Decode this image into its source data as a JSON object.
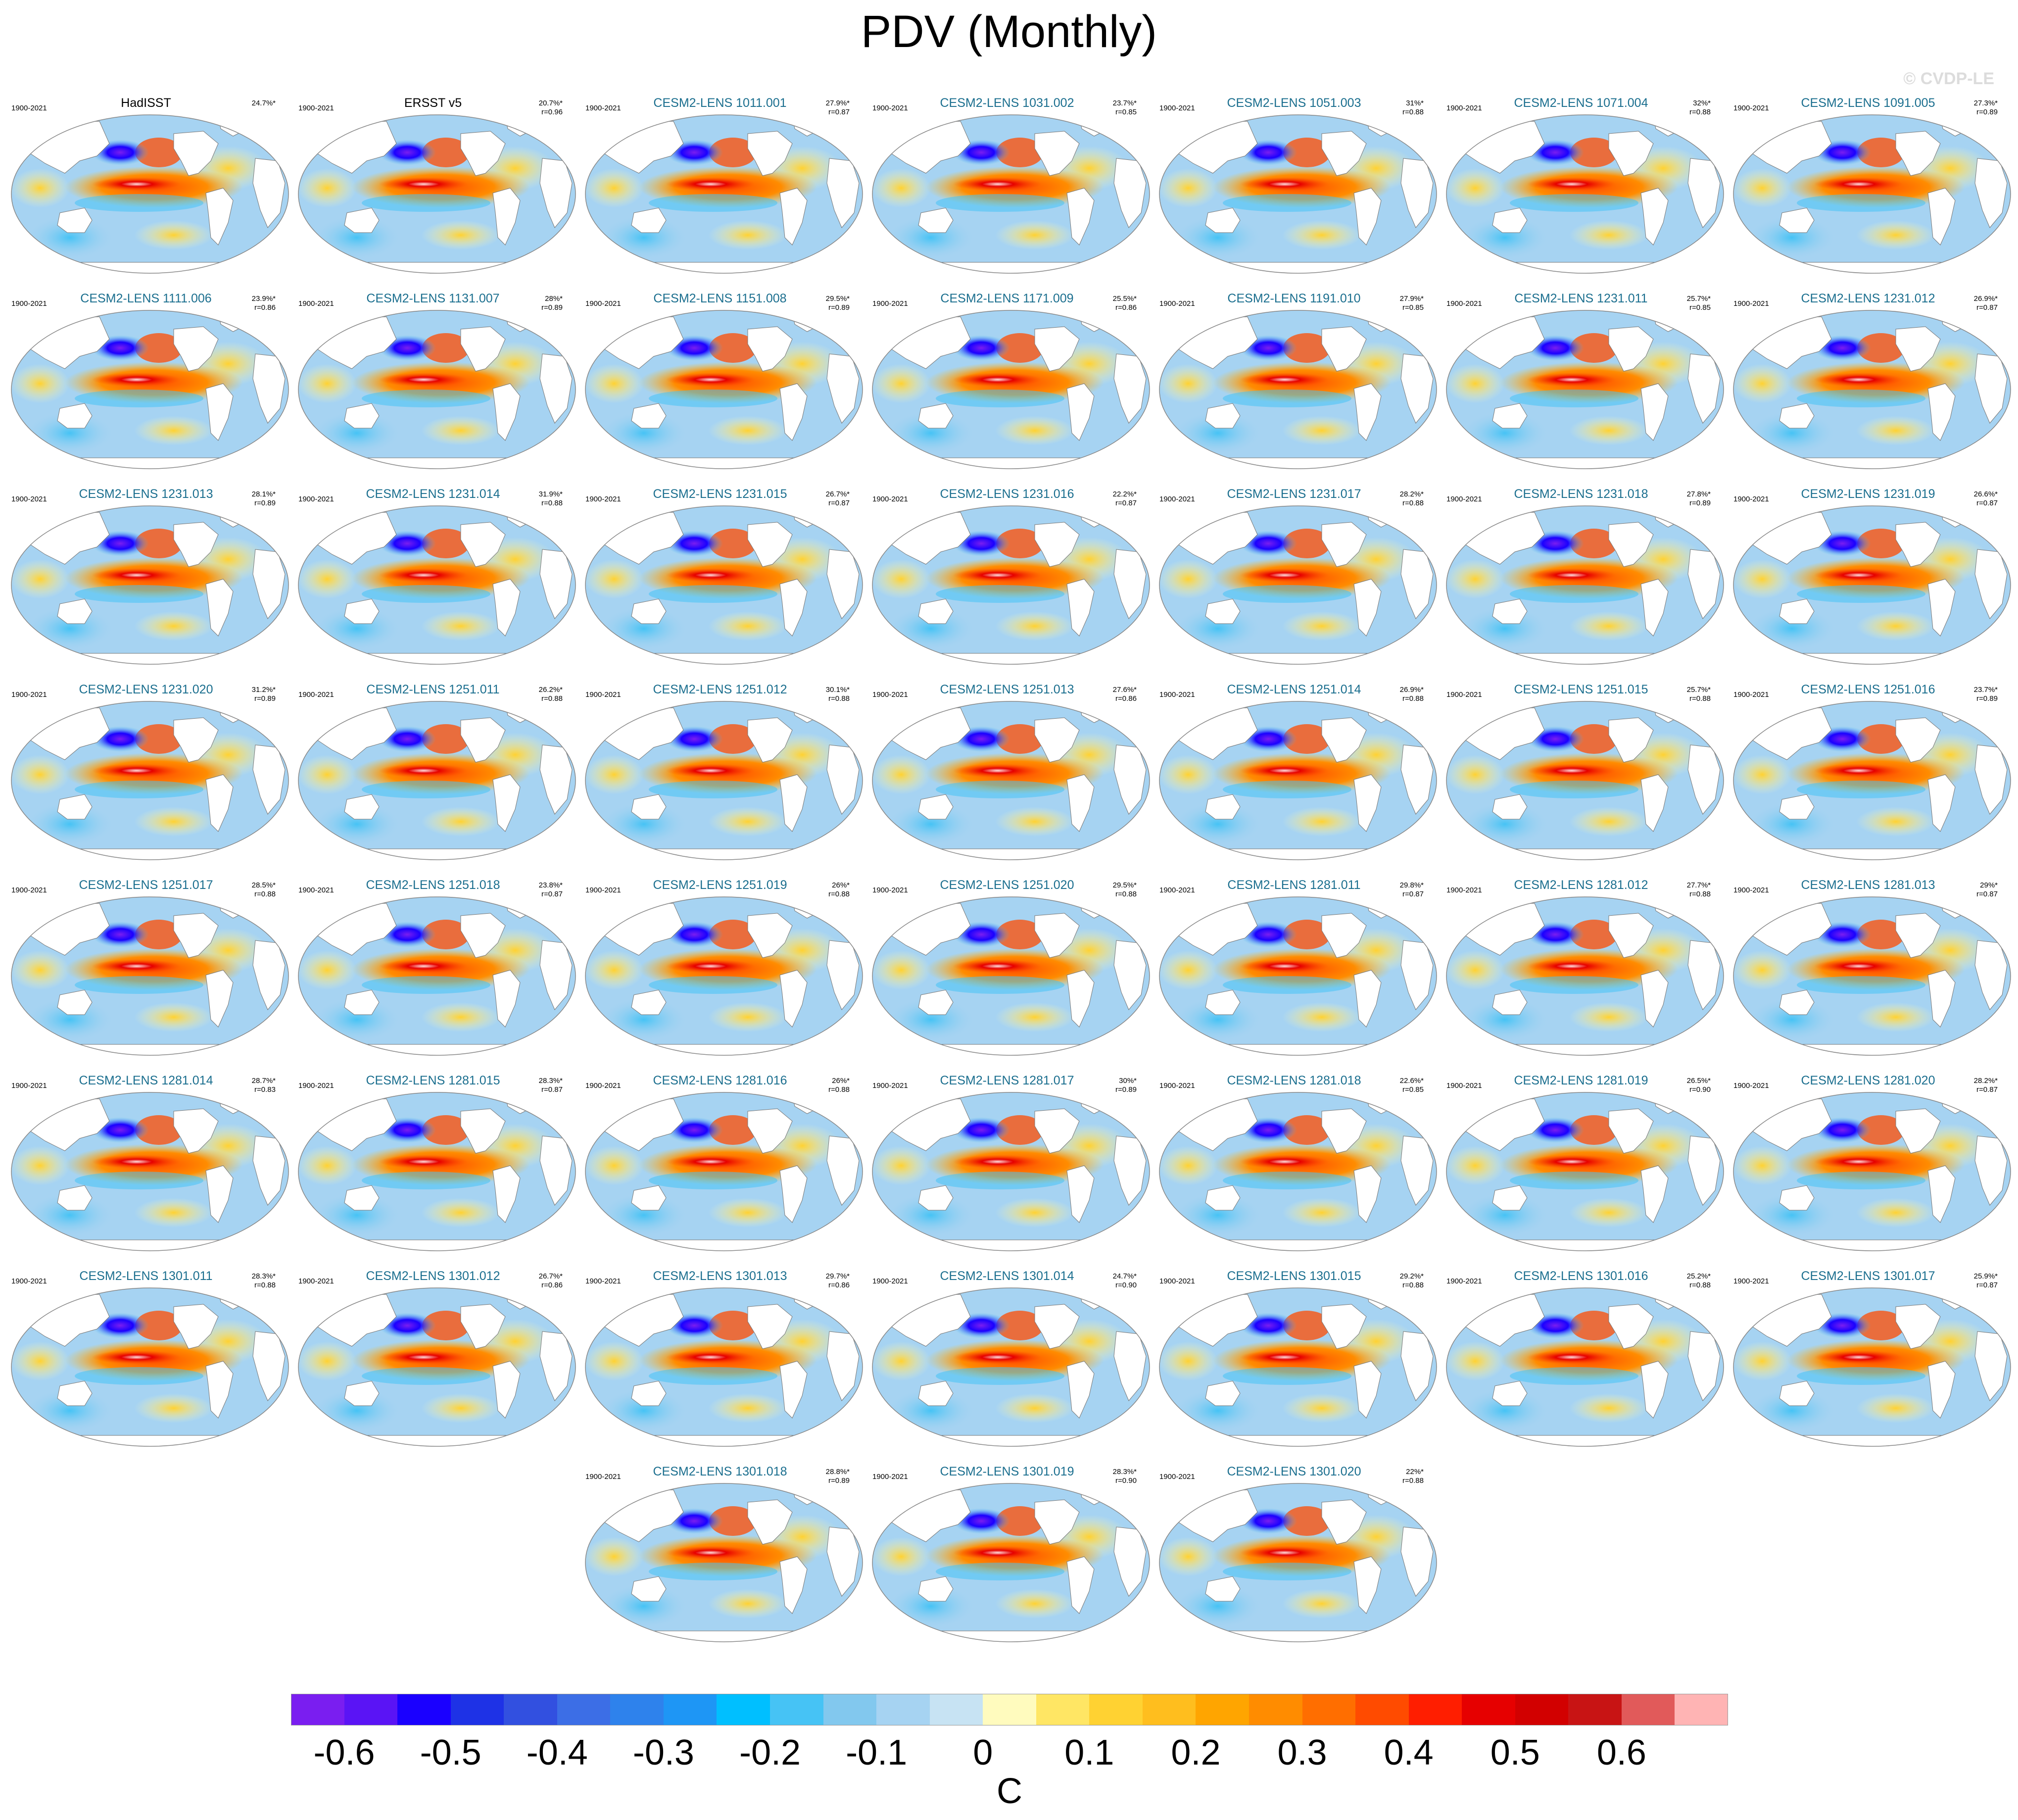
{
  "title": "PDV (Monthly)",
  "watermark": "© CVDP-LE",
  "colors": {
    "ocean_base": "#a6d1ec",
    "land": "#ffffff",
    "frame": "#888888",
    "cb_border": "#999999"
  },
  "panels": [
    {
      "name": "HadISST",
      "period": "1900-2021",
      "pct": "24.7%*",
      "r": "",
      "obs": true
    },
    {
      "name": "ERSST v5",
      "period": "1900-2021",
      "pct": "20.7%*",
      "r": "r=0.96",
      "obs": true
    },
    {
      "name": "CESM2-LENS 1011.001",
      "period": "1900-2021",
      "pct": "27.9%*",
      "r": "r=0.87"
    },
    {
      "name": "CESM2-LENS 1031.002",
      "period": "1900-2021",
      "pct": "23.7%*",
      "r": "r=0.85"
    },
    {
      "name": "CESM2-LENS 1051.003",
      "period": "1900-2021",
      "pct": "31%*",
      "r": "r=0.88"
    },
    {
      "name": "CESM2-LENS 1071.004",
      "period": "1900-2021",
      "pct": "32%*",
      "r": "r=0.88"
    },
    {
      "name": "CESM2-LENS 1091.005",
      "period": "1900-2021",
      "pct": "27.3%*",
      "r": "r=0.89"
    },
    {
      "name": "CESM2-LENS 1111.006",
      "period": "1900-2021",
      "pct": "23.9%*",
      "r": "r=0.86"
    },
    {
      "name": "CESM2-LENS 1131.007",
      "period": "1900-2021",
      "pct": "28%*",
      "r": "r=0.89"
    },
    {
      "name": "CESM2-LENS 1151.008",
      "period": "1900-2021",
      "pct": "29.5%*",
      "r": "r=0.89"
    },
    {
      "name": "CESM2-LENS 1171.009",
      "period": "1900-2021",
      "pct": "25.5%*",
      "r": "r=0.86"
    },
    {
      "name": "CESM2-LENS 1191.010",
      "period": "1900-2021",
      "pct": "27.9%*",
      "r": "r=0.85"
    },
    {
      "name": "CESM2-LENS 1231.011",
      "period": "1900-2021",
      "pct": "25.7%*",
      "r": "r=0.85"
    },
    {
      "name": "CESM2-LENS 1231.012",
      "period": "1900-2021",
      "pct": "26.9%*",
      "r": "r=0.87"
    },
    {
      "name": "CESM2-LENS 1231.013",
      "period": "1900-2021",
      "pct": "28.1%*",
      "r": "r=0.89"
    },
    {
      "name": "CESM2-LENS 1231.014",
      "period": "1900-2021",
      "pct": "31.9%*",
      "r": "r=0.88"
    },
    {
      "name": "CESM2-LENS 1231.015",
      "period": "1900-2021",
      "pct": "26.7%*",
      "r": "r=0.87"
    },
    {
      "name": "CESM2-LENS 1231.016",
      "period": "1900-2021",
      "pct": "22.2%*",
      "r": "r=0.87"
    },
    {
      "name": "CESM2-LENS 1231.017",
      "period": "1900-2021",
      "pct": "28.2%*",
      "r": "r=0.88"
    },
    {
      "name": "CESM2-LENS 1231.018",
      "period": "1900-2021",
      "pct": "27.8%*",
      "r": "r=0.89"
    },
    {
      "name": "CESM2-LENS 1231.019",
      "period": "1900-2021",
      "pct": "26.6%*",
      "r": "r=0.87"
    },
    {
      "name": "CESM2-LENS 1231.020",
      "period": "1900-2021",
      "pct": "31.2%*",
      "r": "r=0.89"
    },
    {
      "name": "CESM2-LENS 1251.011",
      "period": "1900-2021",
      "pct": "26.2%*",
      "r": "r=0.88"
    },
    {
      "name": "CESM2-LENS 1251.012",
      "period": "1900-2021",
      "pct": "30.1%*",
      "r": "r=0.88"
    },
    {
      "name": "CESM2-LENS 1251.013",
      "period": "1900-2021",
      "pct": "27.6%*",
      "r": "r=0.86"
    },
    {
      "name": "CESM2-LENS 1251.014",
      "period": "1900-2021",
      "pct": "26.9%*",
      "r": "r=0.88"
    },
    {
      "name": "CESM2-LENS 1251.015",
      "period": "1900-2021",
      "pct": "25.7%*",
      "r": "r=0.88"
    },
    {
      "name": "CESM2-LENS 1251.016",
      "period": "1900-2021",
      "pct": "23.7%*",
      "r": "r=0.89"
    },
    {
      "name": "CESM2-LENS 1251.017",
      "period": "1900-2021",
      "pct": "28.5%*",
      "r": "r=0.88"
    },
    {
      "name": "CESM2-LENS 1251.018",
      "period": "1900-2021",
      "pct": "23.8%*",
      "r": "r=0.87"
    },
    {
      "name": "CESM2-LENS 1251.019",
      "period": "1900-2021",
      "pct": "26%*",
      "r": "r=0.88"
    },
    {
      "name": "CESM2-LENS 1251.020",
      "period": "1900-2021",
      "pct": "29.5%*",
      "r": "r=0.88"
    },
    {
      "name": "CESM2-LENS 1281.011",
      "period": "1900-2021",
      "pct": "29.8%*",
      "r": "r=0.87"
    },
    {
      "name": "CESM2-LENS 1281.012",
      "period": "1900-2021",
      "pct": "27.7%*",
      "r": "r=0.88"
    },
    {
      "name": "CESM2-LENS 1281.013",
      "period": "1900-2021",
      "pct": "29%*",
      "r": "r=0.87"
    },
    {
      "name": "CESM2-LENS 1281.014",
      "period": "1900-2021",
      "pct": "28.7%*",
      "r": "r=0.83"
    },
    {
      "name": "CESM2-LENS 1281.015",
      "period": "1900-2021",
      "pct": "28.3%*",
      "r": "r=0.87"
    },
    {
      "name": "CESM2-LENS 1281.016",
      "period": "1900-2021",
      "pct": "26%*",
      "r": "r=0.88"
    },
    {
      "name": "CESM2-LENS 1281.017",
      "period": "1900-2021",
      "pct": "30%*",
      "r": "r=0.89"
    },
    {
      "name": "CESM2-LENS 1281.018",
      "period": "1900-2021",
      "pct": "22.6%*",
      "r": "r=0.85"
    },
    {
      "name": "CESM2-LENS 1281.019",
      "period": "1900-2021",
      "pct": "26.5%*",
      "r": "r=0.90"
    },
    {
      "name": "CESM2-LENS 1281.020",
      "period": "1900-2021",
      "pct": "28.2%*",
      "r": "r=0.87"
    },
    {
      "name": "CESM2-LENS 1301.011",
      "period": "1900-2021",
      "pct": "28.3%*",
      "r": "r=0.88"
    },
    {
      "name": "CESM2-LENS 1301.012",
      "period": "1900-2021",
      "pct": "26.7%*",
      "r": "r=0.86"
    },
    {
      "name": "CESM2-LENS 1301.013",
      "period": "1900-2021",
      "pct": "29.7%*",
      "r": "r=0.86"
    },
    {
      "name": "CESM2-LENS 1301.014",
      "period": "1900-2021",
      "pct": "24.7%*",
      "r": "r=0.90"
    },
    {
      "name": "CESM2-LENS 1301.015",
      "period": "1900-2021",
      "pct": "29.2%*",
      "r": "r=0.88"
    },
    {
      "name": "CESM2-LENS 1301.016",
      "period": "1900-2021",
      "pct": "25.2%*",
      "r": "r=0.88"
    },
    {
      "name": "CESM2-LENS 1301.017",
      "period": "1900-2021",
      "pct": "25.9%*",
      "r": "r=0.87"
    },
    {
      "name": "CESM2-LENS 1301.018",
      "period": "1900-2021",
      "pct": "28.8%*",
      "r": "r=0.89"
    },
    {
      "name": "CESM2-LENS 1301.019",
      "period": "1900-2021",
      "pct": "28.3%*",
      "r": "r=0.90"
    },
    {
      "name": "CESM2-LENS 1301.020",
      "period": "1900-2021",
      "pct": "22%*",
      "r": "r=0.88"
    }
  ],
  "colorbar": {
    "colors": [
      "#7a1ef0",
      "#5a14f5",
      "#1a00ff",
      "#1e32e6",
      "#3250e0",
      "#3c6ee6",
      "#2e82ec",
      "#1e96f5",
      "#00bfff",
      "#46c3f5",
      "#82c8ee",
      "#a6d3f2",
      "#c7e3f3",
      "#fffbbe",
      "#ffe664",
      "#ffd232",
      "#ffbe1e",
      "#ffa500",
      "#ff8c00",
      "#ff6e00",
      "#ff4b00",
      "#ff1e00",
      "#e60000",
      "#d20000",
      "#c81414",
      "#e15a5a",
      "#ffb4b4"
    ],
    "tick_labels": [
      "-0.6",
      "-0.5",
      "-0.4",
      "-0.3",
      "-0.2",
      "-0.1",
      "0",
      "0.1",
      "0.2",
      "0.3",
      "0.4",
      "0.5",
      "0.6"
    ],
    "unit": "C"
  }
}
